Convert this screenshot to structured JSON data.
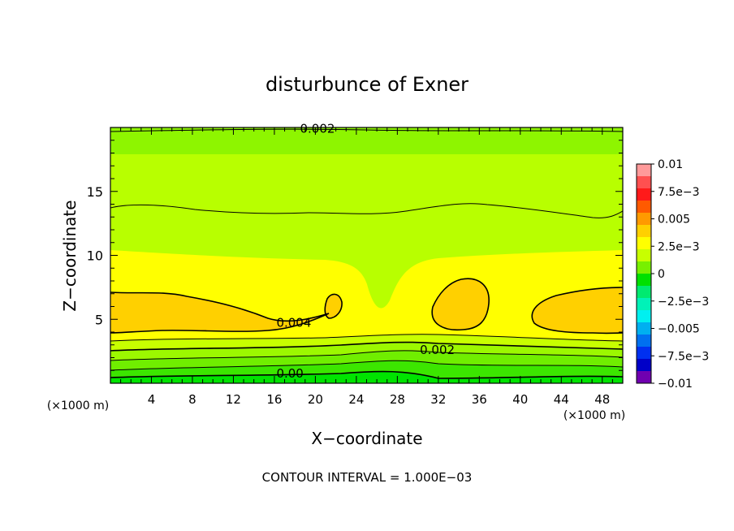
{
  "chart_data": {
    "type": "contour",
    "title": "disturbunce of Exner",
    "xlabel": "X−coordinate",
    "ylabel": "Z−coordinate",
    "x_unit": "(×1000 m)",
    "y_unit": "(×1000 m)",
    "xlim": [
      0,
      50
    ],
    "ylim": [
      0,
      20
    ],
    "x_ticks": [
      4,
      8,
      12,
      16,
      20,
      24,
      28,
      32,
      36,
      40,
      44,
      48
    ],
    "y_ticks": [
      5,
      10,
      15
    ],
    "footer": "CONTOUR INTERVAL = 1.000E−03",
    "contour_labels": [
      {
        "text": "0.002",
        "x": 18.5,
        "z": 19.6
      },
      {
        "text": "0.004",
        "x": 16.2,
        "z": 4.4
      },
      {
        "text": "0.002",
        "x": 30.2,
        "z": 2.3
      },
      {
        "text": "0.00",
        "x": 16.2,
        "z": 0.45
      }
    ],
    "colorbar": {
      "labels": [
        "0.01",
        "7.5e−3",
        "0.005",
        "2.5e−3",
        "0",
        "−2.5e−3",
        "−0.005",
        "−7.5e−3",
        "−0.01"
      ],
      "colors": [
        "#ff9a9a",
        "#ff5050",
        "#ff1a1a",
        "#ff5a00",
        "#ff9a00",
        "#ffd000",
        "#ffff00",
        "#c8ff00",
        "#78f000",
        "#00e000",
        "#00ea70",
        "#00f2b8",
        "#00f0f0",
        "#00b0f0",
        "#0070f0",
        "#0030f0",
        "#0000c8",
        "#7000b0"
      ]
    }
  }
}
